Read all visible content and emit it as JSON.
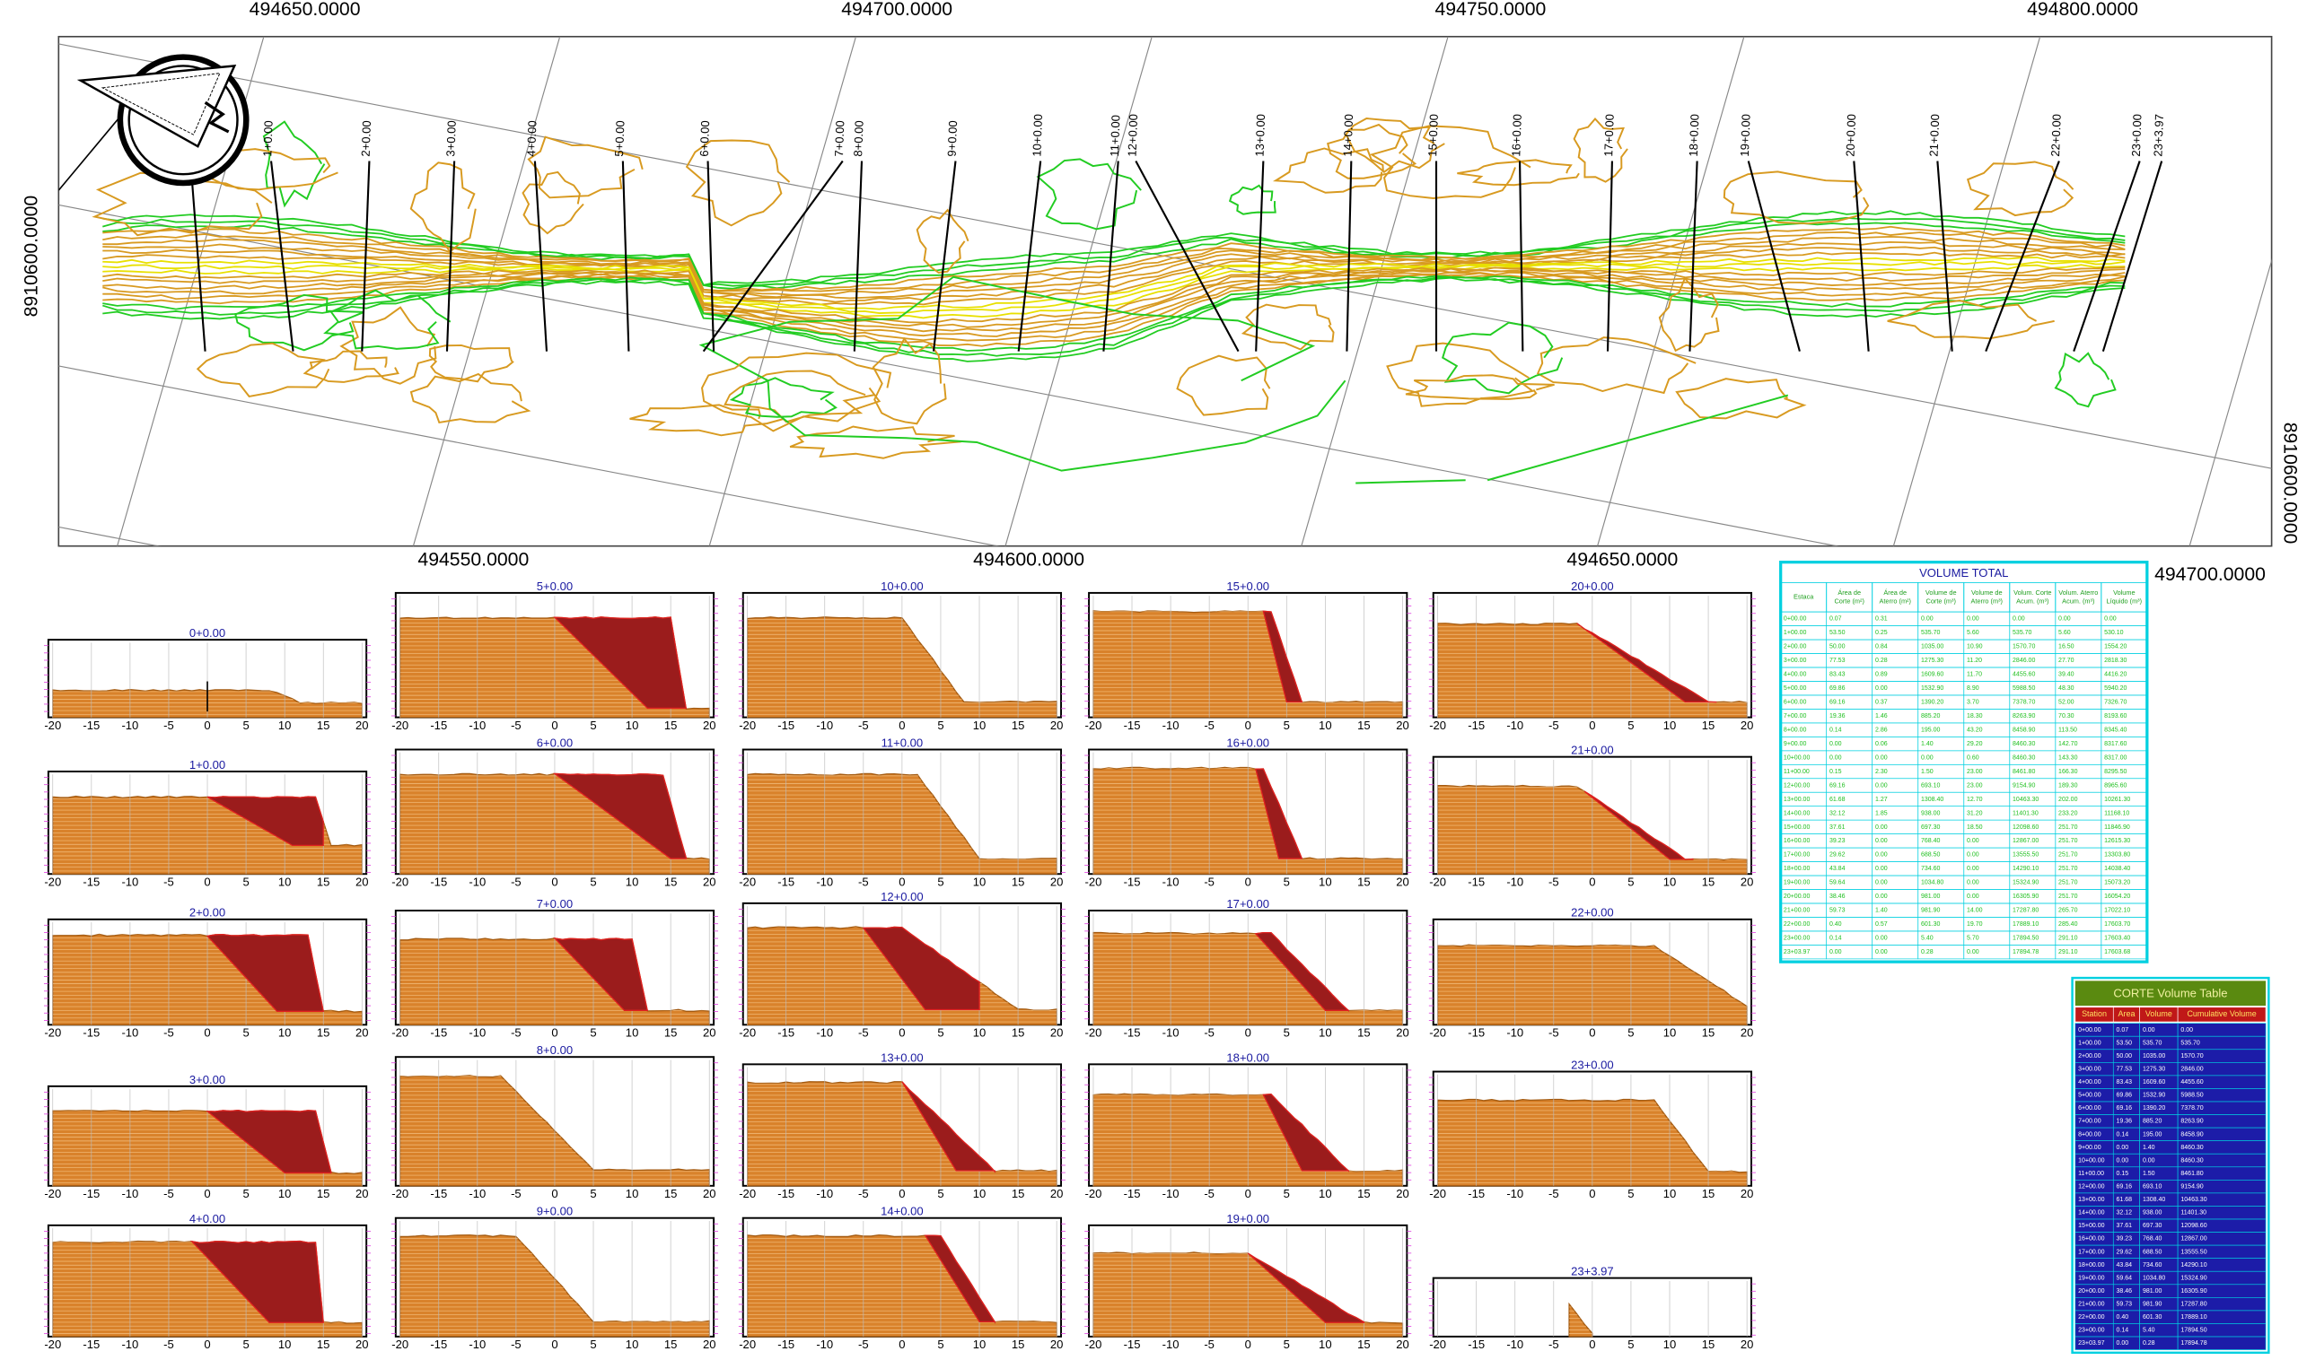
{
  "plan": {
    "top_labels": [
      "494650.0000",
      "494700.0000",
      "494750.0000",
      "494800.0000"
    ],
    "bottom_labels": [
      "494550.0000",
      "494600.0000",
      "494650.0000",
      "494700.0000"
    ],
    "left_label": "8910600.0000",
    "right_label": "8910600.0000"
  },
  "stations": [
    "0+0.00",
    "1+0.00",
    "2+0.00",
    "3+0.00",
    "4+0.00",
    "5+0.00",
    "6+0.00",
    "7+0.00",
    "8+0.00",
    "9+0.00",
    "10+0.00",
    "11+0.00",
    "12+0.00",
    "13+0.00",
    "14+0.00",
    "15+0.00",
    "16+0.00",
    "17+0.00",
    "18+0.00",
    "19+0.00",
    "20+0.00",
    "21+0.00",
    "22+0.00",
    "23+0.00",
    "23+3.97"
  ],
  "sections": {
    "xticks": [
      -20,
      -15,
      -10,
      -5,
      0,
      5,
      10,
      15,
      20
    ]
  },
  "volume_total": {
    "title": "VOLUME TOTAL",
    "columns": [
      [
        "Estaca"
      ],
      [
        "Área de",
        "Corte (m²)"
      ],
      [
        "Área de",
        "Aterro (m²)"
      ],
      [
        "Volume de",
        "Corte (m³)"
      ],
      [
        "Volume de",
        "Aterro (m³)"
      ],
      [
        "Volum. Corte",
        "Acum. (m³)"
      ],
      [
        "Volum. Aterro",
        "Acum. (m³)"
      ],
      [
        "Volume",
        "Líquido (m³)"
      ]
    ],
    "rows": [
      [
        "0+00.00",
        "0.07",
        "0.31",
        "0.00",
        "0.00",
        "0.00",
        "0.00",
        "0.00"
      ],
      [
        "1+00.00",
        "53.50",
        "0.25",
        "535.70",
        "5.60",
        "535.70",
        "5.60",
        "530.10"
      ],
      [
        "2+00.00",
        "50.00",
        "0.84",
        "1035.00",
        "10.90",
        "1570.70",
        "16.50",
        "1554.20"
      ],
      [
        "3+00.00",
        "77.53",
        "0.28",
        "1275.30",
        "11.20",
        "2846.00",
        "27.70",
        "2818.30"
      ],
      [
        "4+00.00",
        "83.43",
        "0.89",
        "1609.60",
        "11.70",
        "4455.60",
        "39.40",
        "4416.20"
      ],
      [
        "5+00.00",
        "69.86",
        "0.00",
        "1532.90",
        "8.90",
        "5988.50",
        "48.30",
        "5940.20"
      ],
      [
        "6+00.00",
        "69.16",
        "0.37",
        "1390.20",
        "3.70",
        "7378.70",
        "52.00",
        "7326.70"
      ],
      [
        "7+00.00",
        "19.36",
        "1.46",
        "885.20",
        "18.30",
        "8263.90",
        "70.30",
        "8193.60"
      ],
      [
        "8+00.00",
        "0.14",
        "2.86",
        "195.00",
        "43.20",
        "8458.90",
        "113.50",
        "8345.40"
      ],
      [
        "9+00.00",
        "0.00",
        "0.06",
        "1.40",
        "29.20",
        "8460.30",
        "142.70",
        "8317.60"
      ],
      [
        "10+00.00",
        "0.00",
        "0.00",
        "0.00",
        "0.60",
        "8460.30",
        "143.30",
        "8317.00"
      ],
      [
        "11+00.00",
        "0.15",
        "2.30",
        "1.50",
        "23.00",
        "8461.80",
        "166.30",
        "8295.50"
      ],
      [
        "12+00.00",
        "69.16",
        "0.00",
        "693.10",
        "23.00",
        "9154.90",
        "189.30",
        "8965.60"
      ],
      [
        "13+00.00",
        "61.68",
        "1.27",
        "1308.40",
        "12.70",
        "10463.30",
        "202.00",
        "10261.30"
      ],
      [
        "14+00.00",
        "32.12",
        "1.85",
        "938.00",
        "31.20",
        "11401.30",
        "233.20",
        "11168.10"
      ],
      [
        "15+00.00",
        "37.61",
        "0.00",
        "697.30",
        "18.50",
        "12098.60",
        "251.70",
        "11846.90"
      ],
      [
        "16+00.00",
        "39.23",
        "0.00",
        "768.40",
        "0.00",
        "12867.00",
        "251.70",
        "12615.30"
      ],
      [
        "17+00.00",
        "29.62",
        "0.00",
        "688.50",
        "0.00",
        "13555.50",
        "251.70",
        "13303.80"
      ],
      [
        "18+00.00",
        "43.84",
        "0.00",
        "734.60",
        "0.00",
        "14290.10",
        "251.70",
        "14038.40"
      ],
      [
        "19+00.00",
        "59.64",
        "0.00",
        "1034.80",
        "0.00",
        "15324.90",
        "251.70",
        "15073.20"
      ],
      [
        "20+00.00",
        "38.46",
        "0.00",
        "981.00",
        "0.00",
        "16305.90",
        "251.70",
        "16054.20"
      ],
      [
        "21+00.00",
        "59.73",
        "1.40",
        "981.90",
        "14.00",
        "17287.80",
        "265.70",
        "17022.10"
      ],
      [
        "22+00.00",
        "0.40",
        "0.57",
        "601.30",
        "19.70",
        "17889.10",
        "285.40",
        "17603.70"
      ],
      [
        "23+00.00",
        "0.14",
        "0.00",
        "5.40",
        "5.70",
        "17894.50",
        "291.10",
        "17603.40"
      ],
      [
        "23+03.97",
        "0.00",
        "0.00",
        "0.28",
        "0.00",
        "17894.78",
        "291.10",
        "17603.68"
      ]
    ]
  },
  "corte_table": {
    "title": "CORTE Volume Table",
    "columns": [
      "Station",
      "Area",
      "Volume",
      "Cumulative Volume"
    ],
    "rows": [
      [
        "0+00.00",
        "0.07",
        "0.00",
        "0.00"
      ],
      [
        "1+00.00",
        "53.50",
        "535.70",
        "535.70"
      ],
      [
        "2+00.00",
        "50.00",
        "1035.00",
        "1570.70"
      ],
      [
        "3+00.00",
        "77.53",
        "1275.30",
        "2846.00"
      ],
      [
        "4+00.00",
        "83.43",
        "1609.60",
        "4455.60"
      ],
      [
        "5+00.00",
        "69.86",
        "1532.90",
        "5988.50"
      ],
      [
        "6+00.00",
        "69.16",
        "1390.20",
        "7378.70"
      ],
      [
        "7+00.00",
        "19.36",
        "885.20",
        "8263.90"
      ],
      [
        "8+00.00",
        "0.14",
        "195.00",
        "8458.90"
      ],
      [
        "9+00.00",
        "0.00",
        "1.40",
        "8460.30"
      ],
      [
        "10+00.00",
        "0.00",
        "0.00",
        "8460.30"
      ],
      [
        "11+00.00",
        "0.15",
        "1.50",
        "8461.80"
      ],
      [
        "12+00.00",
        "69.16",
        "693.10",
        "9154.90"
      ],
      [
        "13+00.00",
        "61.68",
        "1308.40",
        "10463.30"
      ],
      [
        "14+00.00",
        "32.12",
        "938.00",
        "11401.30"
      ],
      [
        "15+00.00",
        "37.61",
        "697.30",
        "12098.60"
      ],
      [
        "16+00.00",
        "39.23",
        "768.40",
        "12867.00"
      ],
      [
        "17+00.00",
        "29.62",
        "688.50",
        "13555.50"
      ],
      [
        "18+00.00",
        "43.84",
        "734.60",
        "14290.10"
      ],
      [
        "19+00.00",
        "59.64",
        "1034.80",
        "15324.90"
      ],
      [
        "20+00.00",
        "38.46",
        "981.00",
        "16305.90"
      ],
      [
        "21+00.00",
        "59.73",
        "981.90",
        "17287.80"
      ],
      [
        "22+00.00",
        "0.40",
        "601.30",
        "17889.10"
      ],
      [
        "23+00.00",
        "0.14",
        "5.40",
        "17894.50"
      ],
      [
        "23+03.97",
        "0.00",
        "0.28",
        "17894.78"
      ]
    ]
  }
}
